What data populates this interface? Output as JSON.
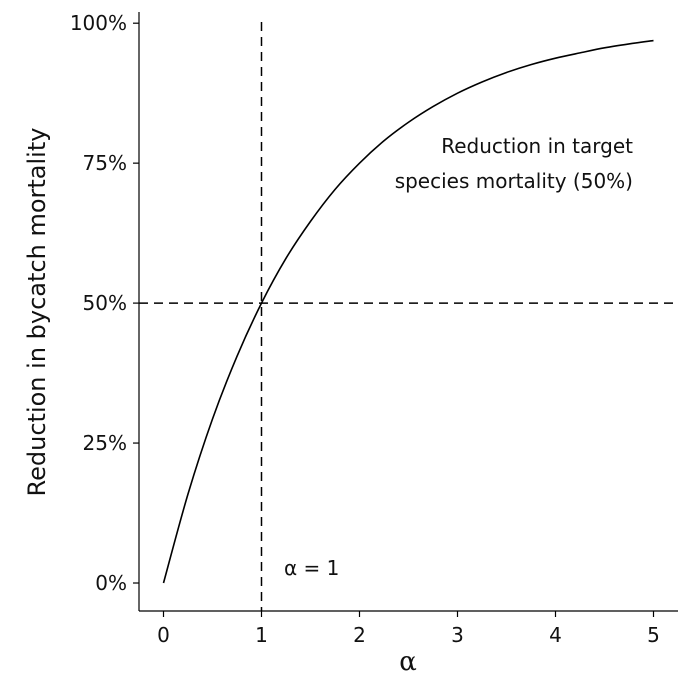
{
  "chart_data": {
    "type": "line",
    "xlabel": "α",
    "ylabel": "Reduction in bycatch mortality",
    "xlim": [
      -0.25,
      5.25
    ],
    "ylim": [
      -0.05,
      1.02
    ],
    "x_ticks": [
      0,
      1,
      2,
      3,
      4,
      5
    ],
    "x_tick_labels": [
      "0",
      "1",
      "2",
      "3",
      "4",
      "5"
    ],
    "y_ticks": [
      0,
      0.25,
      0.5,
      0.75,
      1.0
    ],
    "y_tick_labels": [
      "0%",
      "25%",
      "50%",
      "75%",
      "100%"
    ],
    "grid": false,
    "series": [
      {
        "style": "solid",
        "color": "#000000",
        "x": [
          0,
          0.25,
          0.5,
          0.75,
          1.0,
          1.25,
          1.5,
          1.75,
          2.0,
          2.25,
          2.5,
          2.75,
          3.0,
          3.25,
          3.5,
          3.75,
          4.0,
          4.25,
          4.5,
          4.75,
          5.0
        ],
        "y": [
          0.0,
          0.159,
          0.293,
          0.405,
          0.5,
          0.58,
          0.646,
          0.703,
          0.75,
          0.79,
          0.823,
          0.851,
          0.875,
          0.895,
          0.912,
          0.926,
          0.9375,
          0.947,
          0.956,
          0.963,
          0.969
        ]
      }
    ],
    "reference_lines": [
      {
        "orientation": "vertical",
        "value": 1,
        "style": "dashed"
      },
      {
        "orientation": "horizontal",
        "value": 0.5,
        "style": "dashed"
      }
    ],
    "annotations": [
      {
        "lines": [
          "Reduction in target",
          "species mortality (50%)"
        ]
      },
      {
        "text": "α = 1"
      }
    ]
  }
}
